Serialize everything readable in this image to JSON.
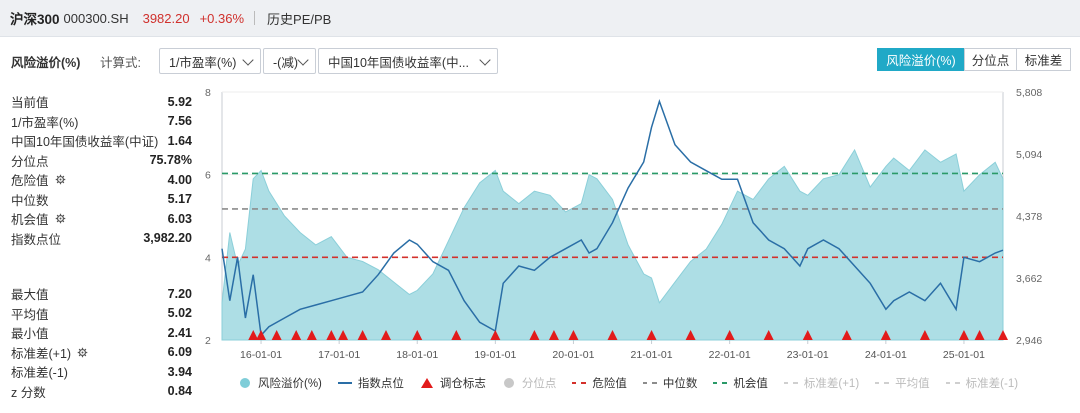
{
  "header": {
    "name": "沪深300",
    "code": "000300.SH",
    "price": "3982.20",
    "change": "+0.36%",
    "history_link": "历史PE/PB"
  },
  "controls": {
    "title": "风险溢价(%)",
    "formula_label": "计算式:",
    "dropdown1": "1/市盈率(%)",
    "dropdown2": "-(减)",
    "dropdown3": "中国10年国债收益率(中...",
    "tabs": [
      "风险溢价(%)",
      "分位点",
      "标准差"
    ],
    "active_tab": 0
  },
  "stats_top": [
    {
      "label": "当前值",
      "value": "5.92",
      "gear": false
    },
    {
      "label": "1/市盈率(%)",
      "value": "7.56",
      "gear": false
    },
    {
      "label": "中国10年国债收益率(中证)",
      "value": "1.64",
      "gear": false
    },
    {
      "label": "分位点",
      "value": "75.78%",
      "gear": false
    },
    {
      "label": "危险值",
      "value": "4.00",
      "gear": true
    },
    {
      "label": "中位数",
      "value": "5.17",
      "gear": false
    },
    {
      "label": "机会值",
      "value": "6.03",
      "gear": true
    },
    {
      "label": "指数点位",
      "value": "3,982.20",
      "gear": false
    }
  ],
  "stats_bottom": [
    {
      "label": "最大值",
      "value": "7.20",
      "gear": false
    },
    {
      "label": "平均值",
      "value": "5.02",
      "gear": false
    },
    {
      "label": "最小值",
      "value": "2.41",
      "gear": false
    },
    {
      "label": "标准差(+1)",
      "value": "6.09",
      "gear": true
    },
    {
      "label": "标准差(-1)",
      "value": "3.94",
      "gear": false
    },
    {
      "label": "z 分数",
      "value": "0.84",
      "gear": false
    }
  ],
  "legend": [
    {
      "label": "风险溢价(%)",
      "symbol": "dot",
      "color": "#7fcdd8",
      "dim": false
    },
    {
      "label": "指数点位",
      "symbol": "line",
      "color": "#2a6ea6",
      "dim": false
    },
    {
      "label": "调仓标志",
      "symbol": "triangle",
      "color": "#e21b1b",
      "dim": false
    },
    {
      "label": "分位点",
      "symbol": "dot",
      "color": "#c8c8c8",
      "dim": true
    },
    {
      "label": "危险值",
      "symbol": "dash",
      "color": "#d4302b",
      "dim": false
    },
    {
      "label": "中位数",
      "symbol": "dash",
      "color": "#8c8c8c",
      "dim": false
    },
    {
      "label": "机会值",
      "symbol": "dash",
      "color": "#2a9a68",
      "dim": false
    },
    {
      "label": "标准差(+1)",
      "symbol": "dash",
      "color": "#cfcfcf",
      "dim": true
    },
    {
      "label": "平均值",
      "symbol": "dash",
      "color": "#cfcfcf",
      "dim": true
    },
    {
      "label": "标准差(-1)",
      "symbol": "dash",
      "color": "#cfcfcf",
      "dim": true
    }
  ],
  "chart_data": {
    "type": "area",
    "x_labels": [
      "16-01-01",
      "17-01-01",
      "18-01-01",
      "19-01-01",
      "20-01-01",
      "21-01-01",
      "22-01-01",
      "23-01-01",
      "24-01-01",
      "25-01-01"
    ],
    "y_left_ticks": [
      "2",
      "4",
      "6",
      "8"
    ],
    "y_left_range": [
      2,
      8
    ],
    "y_right_ticks": [
      "2,946",
      "3,662",
      "4,378",
      "5,094",
      "5,808"
    ],
    "y_right_range": [
      2946,
      5808
    ],
    "x_range": [
      2015.5,
      2025.5
    ],
    "reference_lines": [
      {
        "name": "机会值",
        "value": 6.03,
        "color": "#2a9a68"
      },
      {
        "name": "中位数",
        "value": 5.17,
        "color": "#8c8c8c"
      },
      {
        "name": "危险值",
        "value": 4.0,
        "color": "#d4302b"
      }
    ],
    "risk_premium": {
      "name": "风险溢价(%)",
      "x": [
        2015.5,
        2015.6,
        2015.7,
        2015.8,
        2015.9,
        2016.0,
        2016.1,
        2016.3,
        2016.5,
        2016.7,
        2016.9,
        2017.1,
        2017.3,
        2017.5,
        2017.7,
        2017.9,
        2018.0,
        2018.2,
        2018.4,
        2018.6,
        2018.8,
        2019.0,
        2019.1,
        2019.3,
        2019.5,
        2019.7,
        2019.9,
        2020.1,
        2020.2,
        2020.3,
        2020.5,
        2020.7,
        2020.9,
        2021.0,
        2021.1,
        2021.3,
        2021.5,
        2021.7,
        2021.9,
        2022.1,
        2022.3,
        2022.5,
        2022.7,
        2022.9,
        2023.0,
        2023.2,
        2023.4,
        2023.6,
        2023.8,
        2024.0,
        2024.1,
        2024.3,
        2024.5,
        2024.7,
        2024.9,
        2025.0,
        2025.2,
        2025.4,
        2025.5
      ],
      "y": [
        2.9,
        4.6,
        3.8,
        4.2,
        5.9,
        6.1,
        5.6,
        5.0,
        4.6,
        4.3,
        4.5,
        4.0,
        3.9,
        3.7,
        3.4,
        3.1,
        3.2,
        3.6,
        4.4,
        5.2,
        5.8,
        6.1,
        5.6,
        5.3,
        5.6,
        5.5,
        5.1,
        5.3,
        6.0,
        5.9,
        5.4,
        4.3,
        3.6,
        3.5,
        2.9,
        3.4,
        3.9,
        4.2,
        4.8,
        5.6,
        5.4,
        5.9,
        6.2,
        5.6,
        5.5,
        5.9,
        6.0,
        6.6,
        5.7,
        6.2,
        6.4,
        6.1,
        6.6,
        6.3,
        6.5,
        5.6,
        6.0,
        6.3,
        5.9
      ]
    },
    "index_level": {
      "name": "指数点位",
      "x": [
        2015.5,
        2015.6,
        2015.7,
        2015.8,
        2015.9,
        2016.0,
        2016.1,
        2016.3,
        2016.5,
        2016.7,
        2016.9,
        2017.1,
        2017.3,
        2017.5,
        2017.7,
        2017.9,
        2018.0,
        2018.2,
        2018.4,
        2018.6,
        2018.8,
        2019.0,
        2019.1,
        2019.3,
        2019.5,
        2019.7,
        2019.9,
        2020.1,
        2020.2,
        2020.3,
        2020.5,
        2020.7,
        2020.9,
        2021.0,
        2021.1,
        2021.3,
        2021.5,
        2021.7,
        2021.9,
        2022.1,
        2022.3,
        2022.5,
        2022.7,
        2022.9,
        2023.0,
        2023.2,
        2023.4,
        2023.6,
        2023.8,
        2024.0,
        2024.1,
        2024.3,
        2024.5,
        2024.7,
        2024.9,
        2025.0,
        2025.2,
        2025.4,
        2025.5
      ],
      "y": [
        4000,
        3400,
        3900,
        3200,
        3700,
        3000,
        3100,
        3200,
        3300,
        3350,
        3400,
        3450,
        3500,
        3700,
        3950,
        4100,
        4050,
        3850,
        3750,
        3400,
        3150,
        3050,
        3600,
        3800,
        3750,
        3900,
        4000,
        4100,
        3950,
        4000,
        4300,
        4700,
        5000,
        5400,
        5700,
        5200,
        5000,
        4900,
        4800,
        4800,
        4300,
        4100,
        4000,
        3800,
        4000,
        4100,
        4000,
        3800,
        3600,
        3300,
        3400,
        3500,
        3400,
        3600,
        3300,
        3900,
        3850,
        3950,
        3982.2
      ]
    },
    "rebalance_markers_x": [
      2015.9,
      2016.0,
      2016.2,
      2016.45,
      2016.65,
      2016.9,
      2017.05,
      2017.3,
      2017.6,
      2018.0,
      2018.5,
      2019.0,
      2019.5,
      2019.75,
      2020.0,
      2020.5,
      2021.0,
      2021.5,
      2022.0,
      2022.5,
      2023.0,
      2023.5,
      2024.0,
      2024.5,
      2025.0,
      2025.2,
      2025.5
    ]
  }
}
